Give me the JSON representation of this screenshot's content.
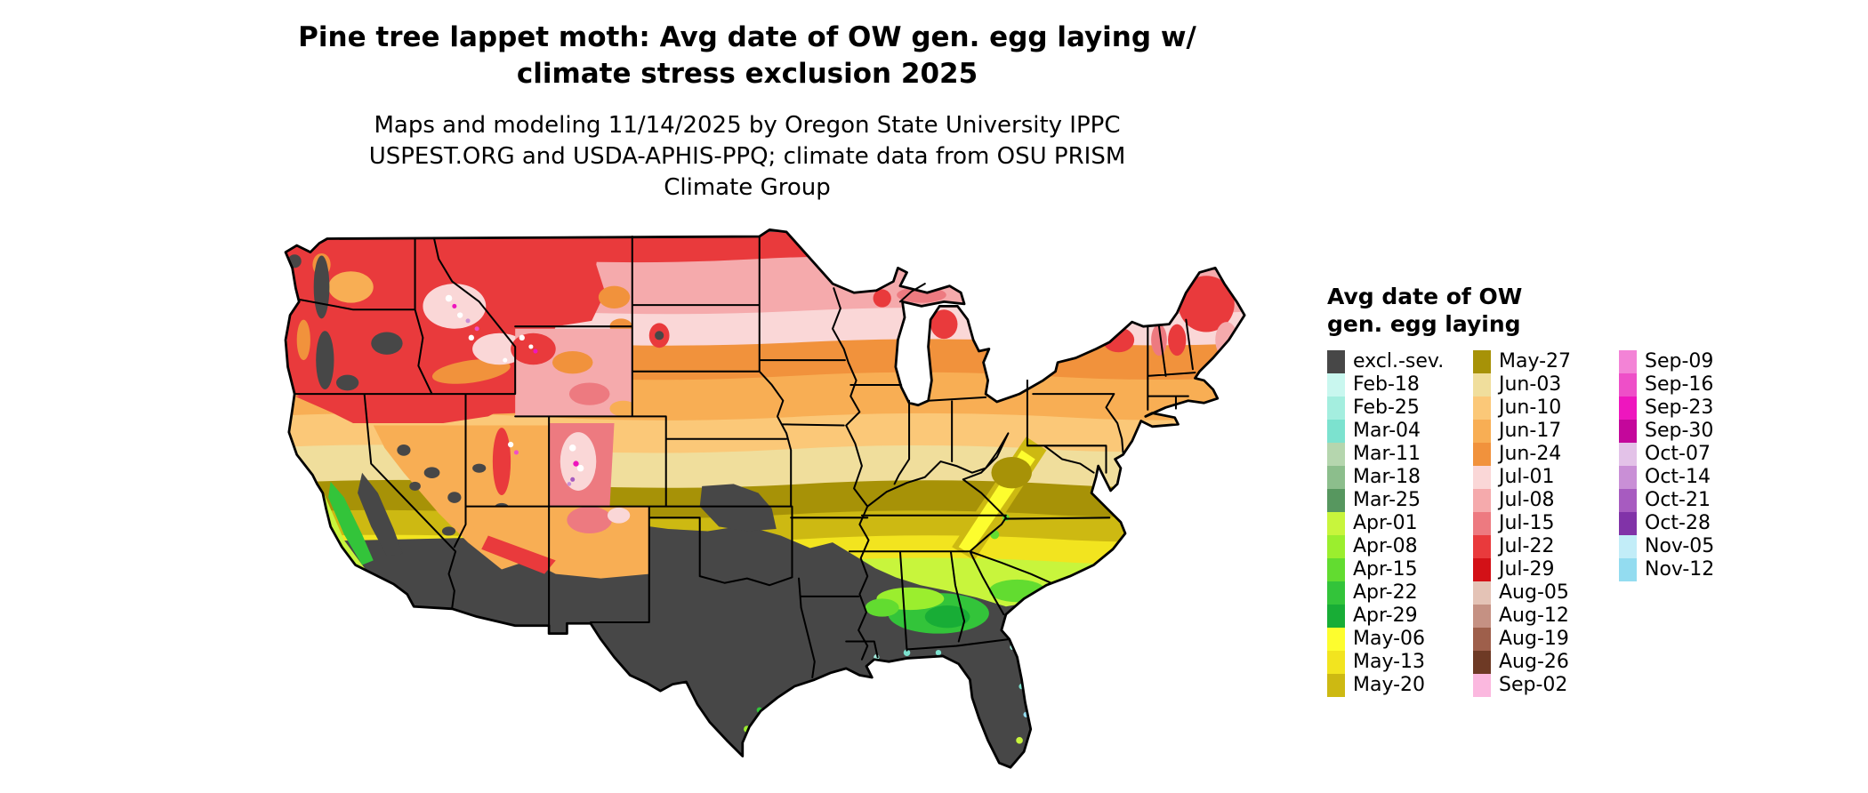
{
  "title": "Pine tree lappet moth: Avg date of OW gen. egg laying w/ climate stress exclusion 2025",
  "subtitle": "Maps and modeling 11/14/2025 by Oregon State University IPPC USPEST.ORG and USDA-APHIS-PPQ; climate data from OSU PRISM Climate Group",
  "legend": {
    "title_line1": "Avg date of OW",
    "title_line2": "gen. egg laying",
    "columns": [
      [
        "excl.-sev.",
        "Feb-18",
        "Feb-25",
        "Mar-04",
        "Mar-11",
        "Mar-18",
        "Mar-25",
        "Apr-01",
        "Apr-08",
        "Apr-15",
        "Apr-22",
        "Apr-29",
        "May-06",
        "May-13",
        "May-20"
      ],
      [
        "May-27",
        "Jun-03",
        "Jun-10",
        "Jun-17",
        "Jun-24",
        "Jul-01",
        "Jul-08",
        "Jul-15",
        "Jul-22",
        "Jul-29",
        "Aug-05",
        "Aug-12",
        "Aug-19",
        "Aug-26",
        "Sep-02"
      ],
      [
        "Sep-09",
        "Sep-16",
        "Sep-23",
        "Sep-30",
        "Oct-07",
        "Oct-14",
        "Oct-21",
        "Oct-28",
        "Nov-05",
        "Nov-12"
      ]
    ]
  },
  "palette": {
    "excl.-sev.": "#474747",
    "Feb-18": "#C9F7EF",
    "Feb-25": "#A4EEDF",
    "Mar-04": "#7CE2CF",
    "Mar-11": "#B5D6AE",
    "Mar-18": "#8CBE8C",
    "Mar-25": "#57975F",
    "Apr-01": "#C8F53C",
    "Apr-08": "#9BEE2E",
    "Apr-15": "#62DC30",
    "Apr-22": "#33C43A",
    "Apr-29": "#18AD36",
    "May-06": "#FDFD2E",
    "May-13": "#F2E41F",
    "May-20": "#CDB912",
    "May-27": "#A79207",
    "Jun-03": "#F0DE9C",
    "Jun-10": "#FBC878",
    "Jun-17": "#F8AE54",
    "Jun-24": "#F1923C",
    "Jul-01": "#FAD7D7",
    "Jul-08": "#F5AAAC",
    "Jul-15": "#ED7A80",
    "Jul-22": "#E93A3C",
    "Jul-29": "#D31117",
    "Aug-05": "#E4C3B6",
    "Aug-12": "#C59183",
    "Aug-19": "#9E5F4B",
    "Aug-26": "#6E3A25",
    "Sep-02": "#FBB8DF",
    "Sep-09": "#F383D6",
    "Sep-16": "#EE4FC8",
    "Sep-23": "#EE16BE",
    "Sep-30": "#C4079B",
    "Oct-07": "#E3C2E8",
    "Oct-14": "#C98FD6",
    "Oct-21": "#A75BC0",
    "Oct-28": "#8133A8",
    "Nov-05": "#C2EDF8",
    "Nov-12": "#93DCF0"
  }
}
